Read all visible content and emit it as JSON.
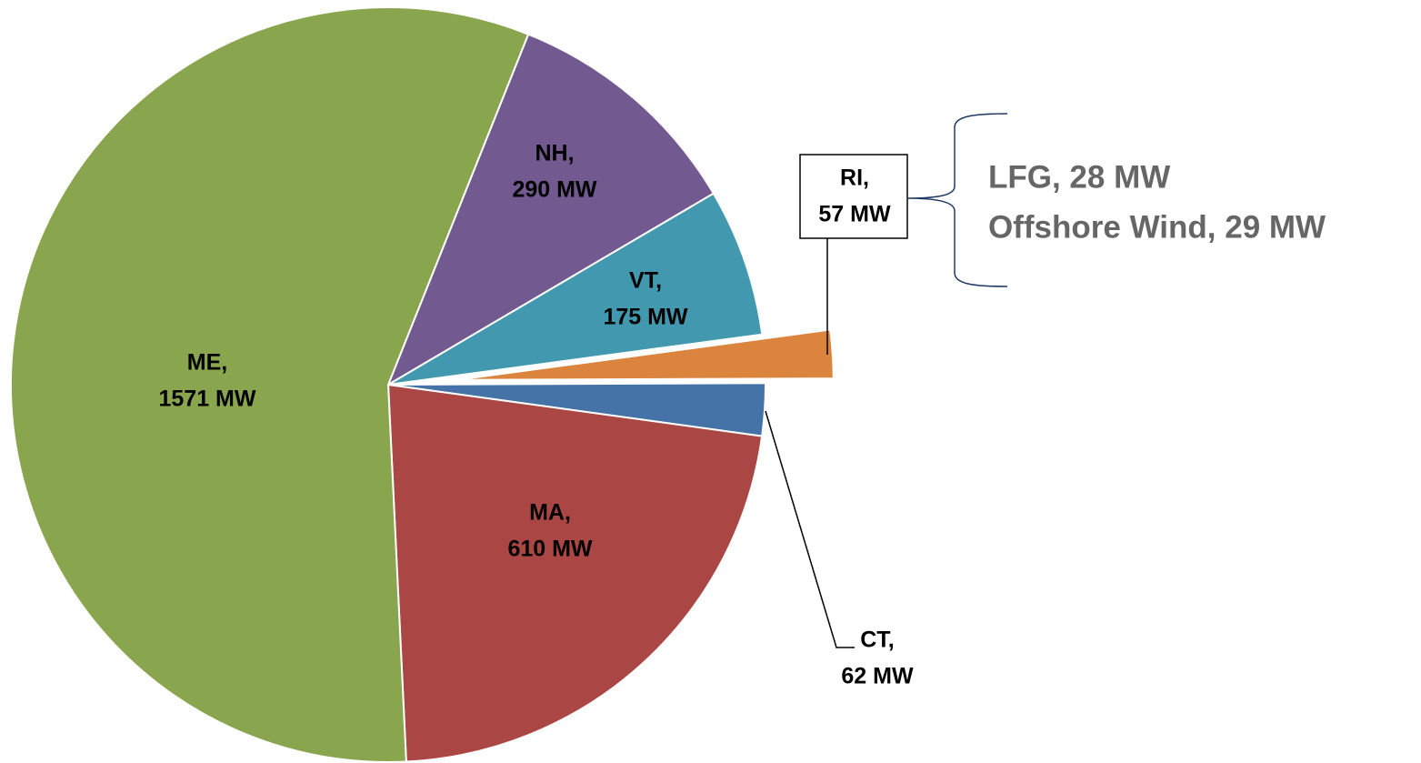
{
  "chart_data": {
    "type": "pie",
    "categories": [
      "NH,",
      "VT,",
      "RI,",
      "CT,",
      "MA,",
      "ME,"
    ],
    "values": [
      290,
      175,
      57,
      62,
      610,
      1571
    ],
    "value_labels": [
      "290 MW",
      "175 MW",
      "57 MW",
      "62 MW",
      "610 MW",
      "1571 MW"
    ],
    "colors": [
      "#725990",
      "#4198AF",
      "#DB843D",
      "#4572A7",
      "#AA4643",
      "#89A54E"
    ],
    "explode": [
      false,
      false,
      true,
      false,
      false,
      false
    ],
    "annotations": [
      "LFG, 28 MW",
      "Offshore Wind, 29 MW"
    ]
  }
}
